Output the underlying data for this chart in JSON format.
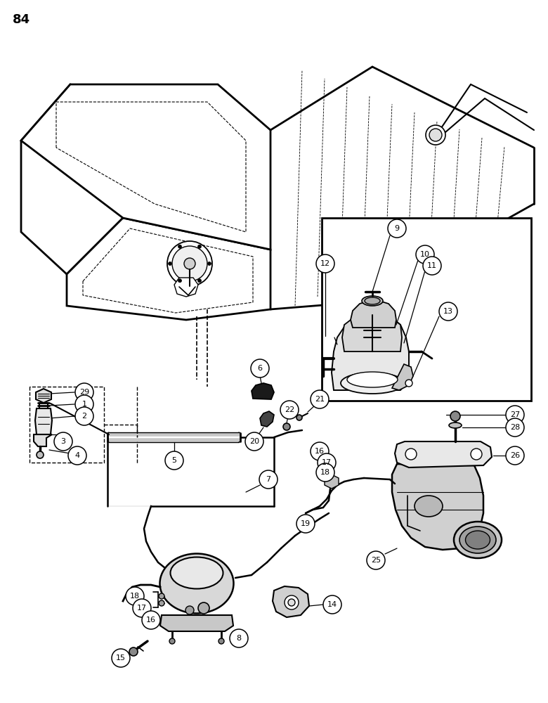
{
  "background_color": "#ffffff",
  "page_number": "84",
  "figsize": [
    7.8,
    10.0
  ],
  "dpi": 100
}
